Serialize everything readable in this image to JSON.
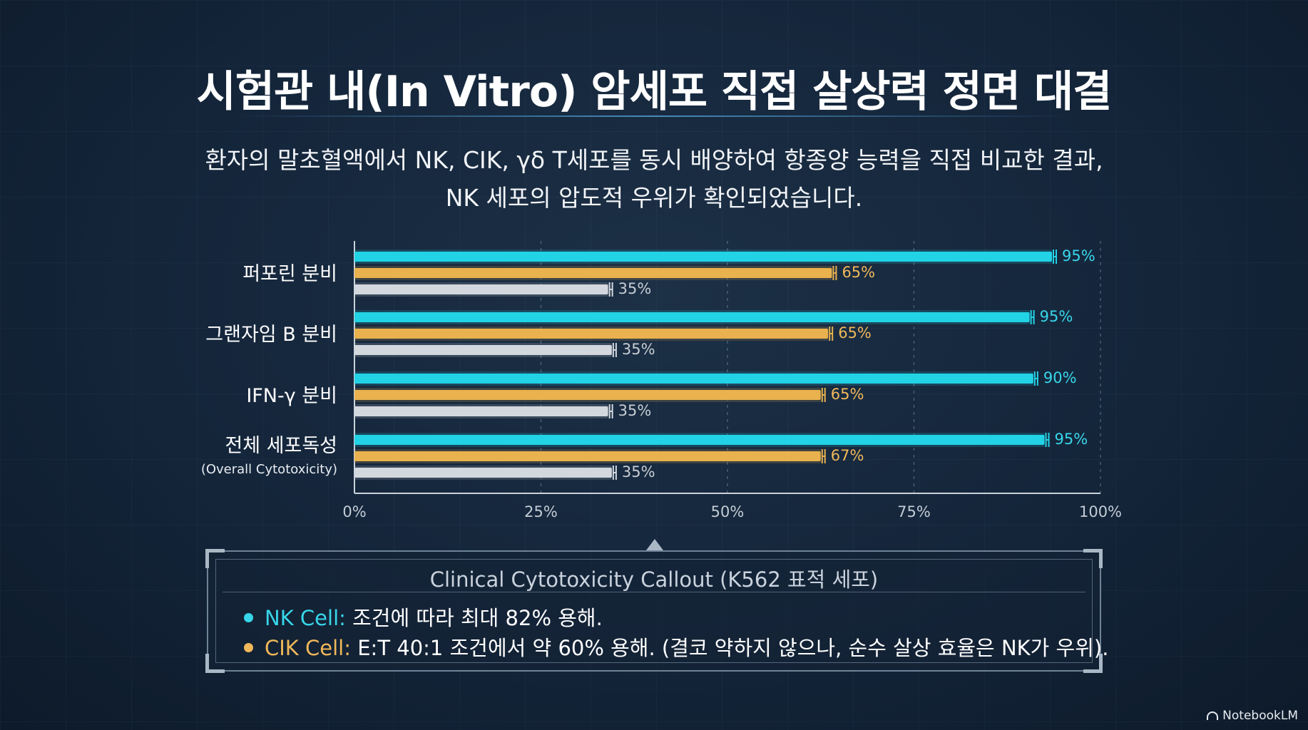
{
  "title": "시험관 내(In Vitro) 암세포 직접 살상력 정면 대결",
  "subtitle_line1": "환자의 말초혈액에서 NK, CIK, γδ T세포를 동시 배양하여 항종양 능력을 직접 비교한 결과,",
  "subtitle_line2": "NK 세포의 압도적 우위가 확인되었습니다.",
  "chart_data": {
    "type": "bar",
    "orientation": "horizontal",
    "categories": [
      {
        "label": "퍼포린 분비",
        "sublabel": ""
      },
      {
        "label": "그랜자임 B 분비",
        "sublabel": ""
      },
      {
        "label": "IFN-γ 분비",
        "sublabel": ""
      },
      {
        "label": "전체 세포독성",
        "sublabel": "(Overall Cytotoxicity)"
      }
    ],
    "series": [
      {
        "color": "#22d3e6",
        "label_color": "#38d6ea",
        "values": [
          95,
          95,
          90,
          95
        ],
        "draw_values": [
          93.5,
          90.5,
          91,
          92.5
        ]
      },
      {
        "color": "#e9b24e",
        "label_color": "#f0b85a",
        "values": [
          65,
          65,
          65,
          67
        ],
        "draw_values": [
          64,
          63.5,
          62.5,
          62.5
        ]
      },
      {
        "color": "#d3d8de",
        "label_color": "#c8cdd3",
        "values": [
          35,
          35,
          35,
          35
        ],
        "draw_values": [
          34,
          34.5,
          34,
          34.5
        ]
      }
    ],
    "value_suffix": "%",
    "xlim": [
      0,
      100
    ],
    "xticks": [
      "0%",
      "25%",
      "50%",
      "75%",
      "100%"
    ],
    "grid": true
  },
  "callout": {
    "title": "Clinical Cytotoxicity Callout (K562 표적 세포)",
    "items": [
      {
        "name": "NK Cell:",
        "text": " 조건에 따라 최대 82% 용해.",
        "color": "#38d6ea"
      },
      {
        "name": "CIK Cell:",
        "text": " E:T 40:1 조건에서 약 60% 용해. (결코 약하지 않으나, 순수 살상 효율은 NK가 우위).",
        "color": "#f0b85a"
      }
    ]
  },
  "brand": "NotebookLM"
}
